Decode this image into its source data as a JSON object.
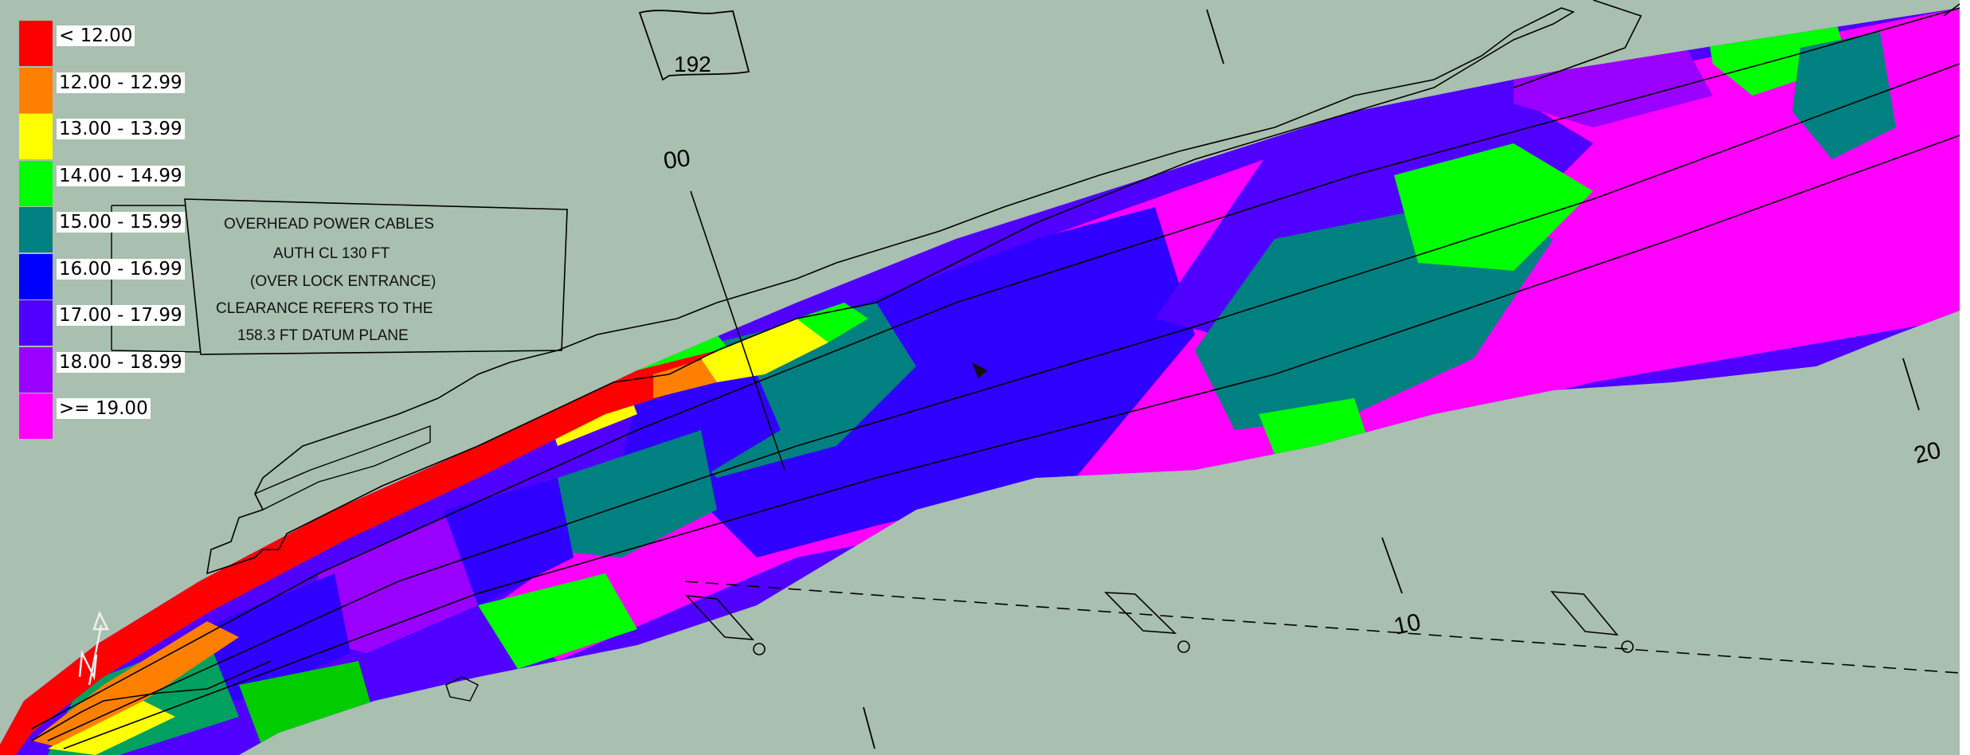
{
  "legend": {
    "items": [
      {
        "label": "< 12.00",
        "color": "#ff0000"
      },
      {
        "label": "12.00 - 12.99",
        "color": "#ff8000"
      },
      {
        "label": "13.00 - 13.99",
        "color": "#ffff00"
      },
      {
        "label": "14.00 - 14.99",
        "color": "#00ff00"
      },
      {
        "label": "15.00 - 15.99",
        "color": "#008080"
      },
      {
        "label": "16.00 - 16.99",
        "color": "#0000ff"
      },
      {
        "label": "17.00 - 17.99",
        "color": "#5000ff"
      },
      {
        "label": "18.00 - 18.99",
        "color": "#9900ff"
      },
      {
        "label": ">= 19.00",
        "color": "#ff00ff"
      }
    ]
  },
  "annotation": {
    "lines": [
      "OVERHEAD POWER CABLES",
      "AUTH CL 130 FT",
      "(OVER LOCK ENTRANCE)",
      "CLEARANCE REFERS TO THE",
      "158.3 FT DATUM PLANE"
    ]
  },
  "map_labels": {
    "buoy": "192",
    "station_00": "00",
    "station_10": "10",
    "station_20": "20"
  },
  "colors": {
    "background": "#a9bfb0",
    "linework": "#000000"
  }
}
